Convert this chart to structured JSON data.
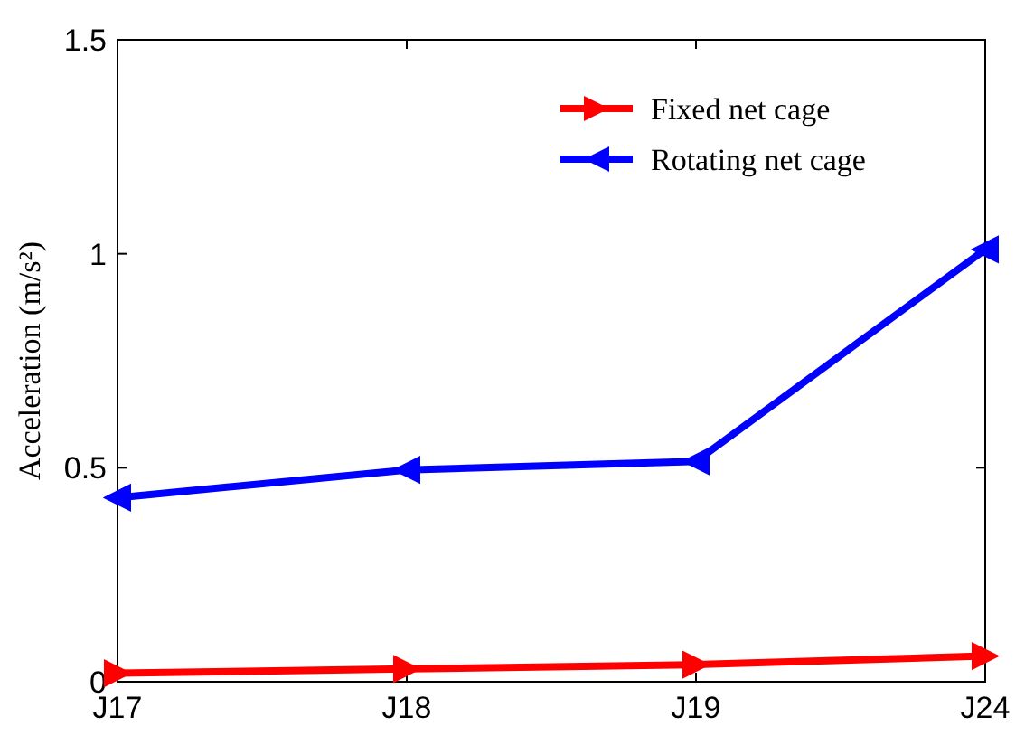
{
  "chart_data": {
    "type": "line",
    "categories": [
      "J17",
      "J18",
      "J19",
      "J24"
    ],
    "ylabel": "Acceleration (m/s²)",
    "ylim": [
      0,
      1.5
    ],
    "yticks": [
      0,
      0.5,
      1,
      1.5
    ],
    "legend": "top right",
    "marker": "triangle",
    "line_style": "solid",
    "grid": false,
    "series": [
      {
        "name": "Fixed net cage",
        "color": "#ff0000",
        "values": [
          0.02,
          0.03,
          0.04,
          0.06
        ]
      },
      {
        "name": "Rotating net cage",
        "color": "#0000ff",
        "values": [
          0.43,
          0.495,
          0.515,
          1.01
        ]
      }
    ]
  }
}
